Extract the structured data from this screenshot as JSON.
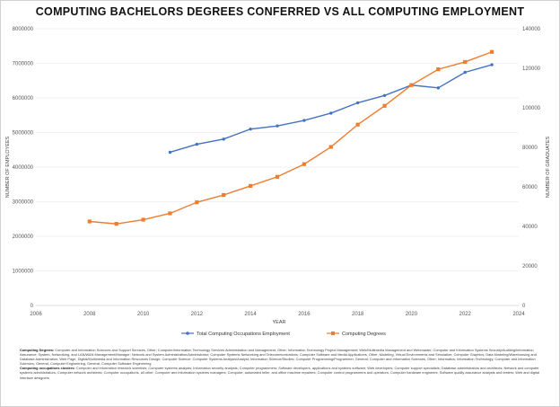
{
  "chart_data": {
    "type": "line",
    "title": "COMPUTING BACHELORS DEGREES CONFERRED VS ALL COMPUTING EMPLOYMENT",
    "xlabel": "YEAR",
    "ylabel_left": "NUMBER OF EMPLOYEES",
    "ylabel_right": "NUMBER OF GRADUATES",
    "xlim": [
      2006,
      2024
    ],
    "ylim_left": [
      0,
      8000000
    ],
    "ylim_right": [
      0,
      140000
    ],
    "x_ticks": [
      "2006",
      "2008",
      "2010",
      "2012",
      "2014",
      "2016",
      "2018",
      "2020",
      "2022",
      "2024"
    ],
    "y_ticks_left": [
      "0",
      "1000000",
      "2000000",
      "3000000",
      "4000000",
      "5000000",
      "6000000",
      "7000000",
      "8000000"
    ],
    "y_ticks_right": [
      "0",
      "20000",
      "40000",
      "60000",
      "80000",
      "100000",
      "120000",
      "140000"
    ],
    "series": [
      {
        "name": "Total Computing Occupations Employment",
        "axis": "left",
        "color": "#4472c4",
        "x": [
          2011,
          2012,
          2013,
          2014,
          2015,
          2016,
          2017,
          2018,
          2019,
          2020,
          2021,
          2022,
          2023
        ],
        "y": [
          4430000,
          4660000,
          4810000,
          5100000,
          5190000,
          5350000,
          5560000,
          5860000,
          6070000,
          6370000,
          6290000,
          6740000,
          6960000
        ]
      },
      {
        "name": "Computing Degrees",
        "axis": "right",
        "color": "#ed7d31",
        "x": [
          2008,
          2009,
          2010,
          2011,
          2012,
          2013,
          2014,
          2015,
          2016,
          2017,
          2018,
          2019,
          2020,
          2021,
          2022,
          2023
        ],
        "y": [
          42500,
          41300,
          43400,
          46600,
          52200,
          55900,
          60500,
          65100,
          71500,
          80200,
          91500,
          101000,
          111500,
          119500,
          123200,
          128300
        ]
      }
    ],
    "legend_position": "bottom-center"
  },
  "notes": {
    "degrees_label": "Computing Degrees:",
    "degrees_text": "Computer and Information Sciences and Support Services, Other; Computer/Information Technology Services Administration and Management, Other; Information Technology Project Management; Web/Multimedia Management and Webmaster; Computer and Information Systems Security/Auditing/Information Assurance; System, Networking, and LAN/WAN Management/Manager; Network and System Administration/Administrator; Computer Systems Networking and Telecommunications; Computer Software and Media Applications, Other; Modeling, Virtual Environments and Simulation; Computer Graphics; Data Modeling/Warehousing and Database Administration; Web Page, Digital/Multimedia and Information Resources Design; Computer Science; Computer Systems Analysis/Analyst; Information Science/Studies; Computer Programming/Programmer, General; Computer and Information Sciences, Other; Informatics; Information Technology; Computer and Information Sciences, General; Computer Engineering, General; Computer Software Engineering",
    "occupations_label": "Computing occupations clusters:",
    "occupations_text": "Computer and information research scientists; Computer systems analysts; Information security analysts; Computer programmers; Software developers, applications and systems software; Web developers; Computer support specialists; Database administrators and architects; Network and computer systems administrators; Computer network architects; Computer occupations, all other; Computer and information systems managers; Computer, automated teller, and office machine repairers; Computer control programmers and operators; Computer hardware engineers; Software quality assurance analysts and testers; Web and digital interface designers"
  }
}
